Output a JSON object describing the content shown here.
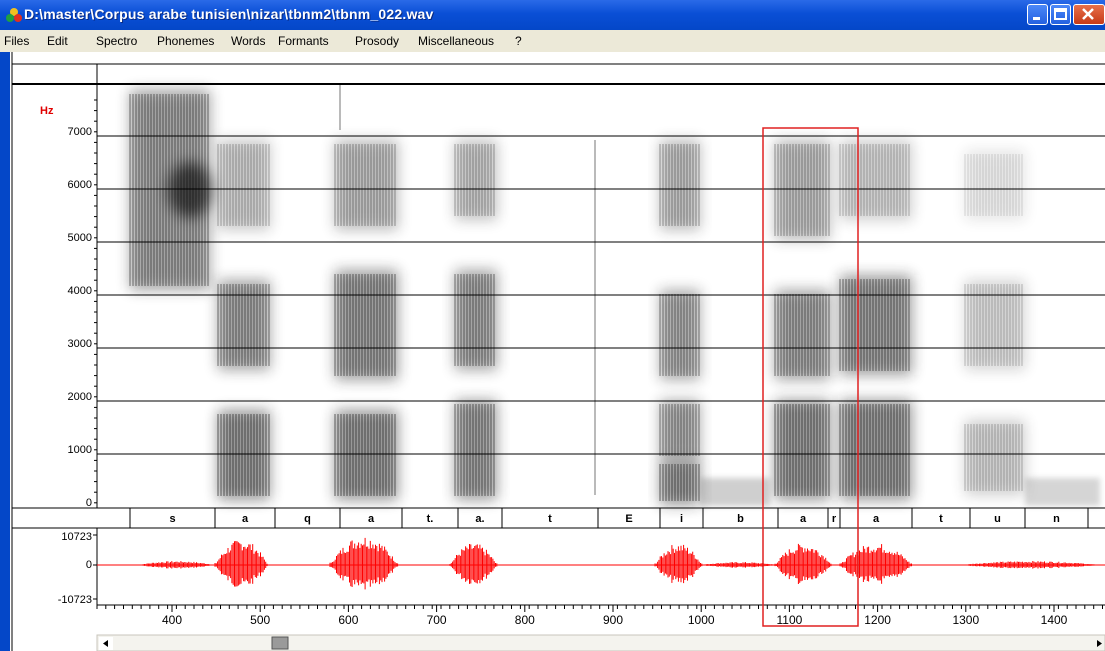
{
  "window": {
    "title": "D:\\master\\Corpus arabe tunisien\\nizar\\tbnm2\\tbnm_022.wav",
    "controls": [
      "minimize",
      "maximize",
      "close"
    ]
  },
  "menu": [
    "Files",
    "Edit",
    "Spectro",
    "Phonemes",
    "Words",
    "Formants",
    "Prosody",
    "Miscellaneous",
    "?"
  ],
  "spectrogram": {
    "unit_label": "Hz",
    "y_ticks": [
      "7000",
      "6000",
      "5000",
      "4000",
      "3000",
      "2000",
      "1000",
      "0"
    ]
  },
  "phonemes": [
    "s",
    "a",
    "q",
    "a",
    "t.",
    "a.",
    "t",
    "E",
    "i",
    "b",
    "a",
    "r",
    "a",
    "t",
    "u",
    "n"
  ],
  "waveform": {
    "max_label": "10723",
    "zero_label": "0",
    "min_label": "-10723",
    "color": "#ff0000"
  },
  "time_axis": {
    "labels": [
      "400",
      "500",
      "600",
      "700",
      "800",
      "900",
      "1000",
      "1100",
      "1200",
      "1300",
      "1400"
    ]
  },
  "selection": {
    "color": "#e02020"
  },
  "icons": {
    "app": "app-icon",
    "scroll_left": "arrow-left-icon",
    "scroll_right": "arrow-right-icon"
  }
}
